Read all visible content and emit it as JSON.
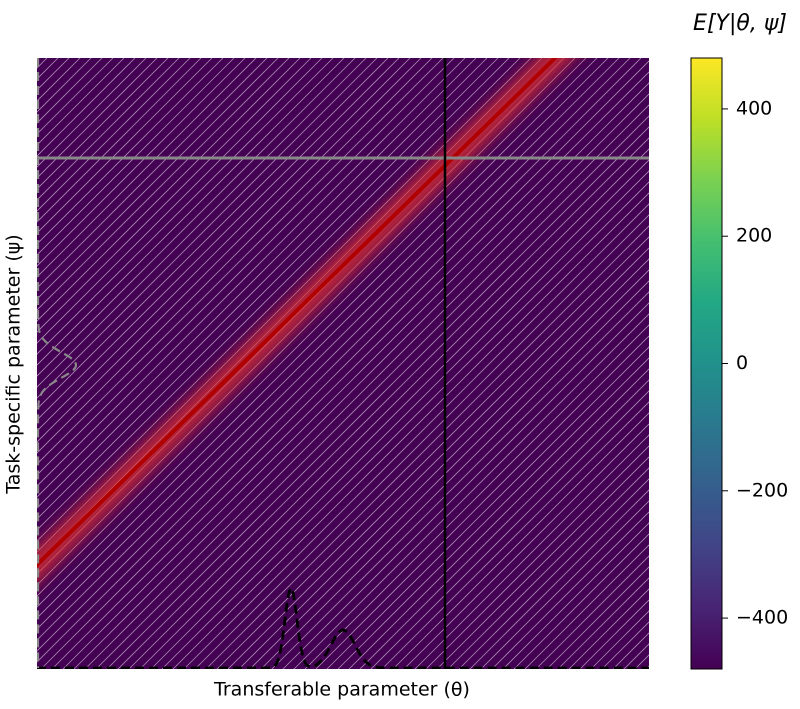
{
  "chart_data": {
    "type": "heatmap",
    "xlabel": "Transferable parameter (θ)",
    "ylabel": "Task-specific parameter (ψ)",
    "colorbar_label": "E[Y|θ, ψ]",
    "clim": [
      -480,
      480
    ],
    "cticks": [
      {
        "value": -400,
        "label": "−400"
      },
      {
        "value": -200,
        "label": "−200"
      },
      0,
      200,
      400
    ],
    "colormap": [
      "#440154",
      "#482475",
      "#414487",
      "#355f8d",
      "#2a788e",
      "#21918c",
      "#22a884",
      "#44bf70",
      "#7ad151",
      "#bddf26",
      "#fde725"
    ]
  }
}
